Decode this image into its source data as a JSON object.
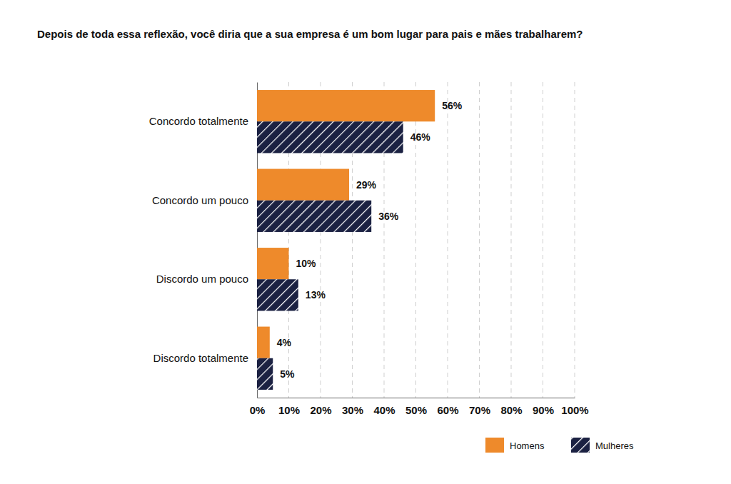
{
  "chart_data": {
    "type": "bar",
    "orientation": "horizontal",
    "title": "Depois de toda essa reflexão, você diria que a sua empresa é um bom lugar para pais e mães trabalharem?",
    "categories": [
      "Concordo totalmente",
      "Concordo um pouco",
      "Discordo um pouco",
      "Discordo totalmente"
    ],
    "series": [
      {
        "name": "Homens",
        "color": "#ee8a2b",
        "values": [
          56,
          29,
          10,
          4
        ],
        "value_labels": [
          "56%",
          "29%",
          "10%",
          "4%"
        ]
      },
      {
        "name": "Mulheres",
        "color": "#1b2142",
        "values": [
          46,
          36,
          13,
          5
        ],
        "value_labels": [
          "46%",
          "36%",
          "13%",
          "5%"
        ]
      }
    ],
    "xlim": [
      0,
      100
    ],
    "xticks": [
      {
        "value": 0,
        "label": "0%"
      },
      {
        "value": 10,
        "label": "10%"
      },
      {
        "value": 20,
        "label": "20%"
      },
      {
        "value": 30,
        "label": "30%"
      },
      {
        "value": 40,
        "label": "40%"
      },
      {
        "value": 50,
        "label": "50%"
      },
      {
        "value": 60,
        "label": "60%"
      },
      {
        "value": 70,
        "label": "70%"
      },
      {
        "value": 80,
        "label": "80%"
      },
      {
        "value": 90,
        "label": "90%"
      },
      {
        "value": 100,
        "label": "100%"
      }
    ],
    "grid": true,
    "data_labels": true,
    "legend": "bottom-right"
  }
}
